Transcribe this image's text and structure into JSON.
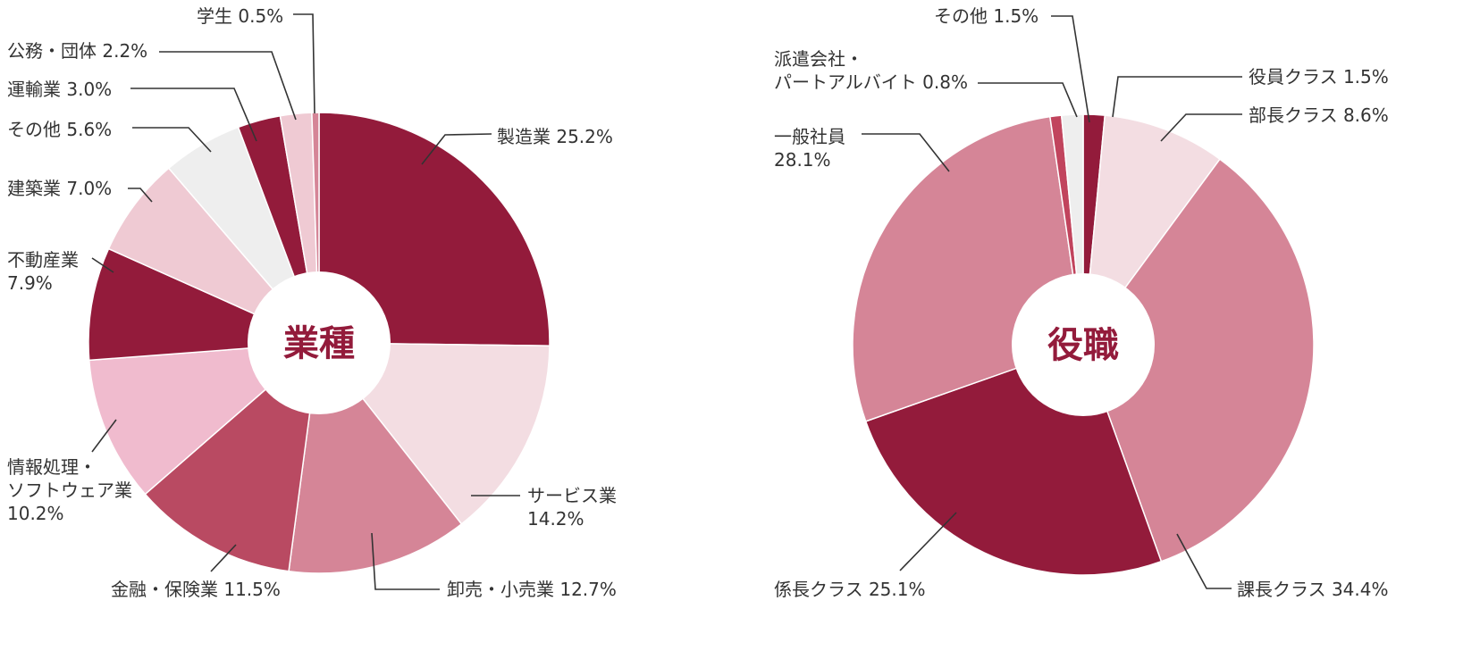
{
  "chart_data": [
    {
      "type": "pie",
      "title": "業種",
      "slices": [
        {
          "label": "製造業",
          "value": 25.2,
          "display": "25.2%",
          "color": "#931b3b"
        },
        {
          "label": "サービス業",
          "value": 14.2,
          "display": "14.2%",
          "color": "#f3dde2"
        },
        {
          "label": "卸売・小売業",
          "value": 12.7,
          "display": "12.7%",
          "color": "#d58597"
        },
        {
          "label": "金融・保険業",
          "value": 11.5,
          "display": "11.5%",
          "color": "#b94a62"
        },
        {
          "label": "情報処理・ソフトウェア業",
          "value": 10.2,
          "display": "10.2%",
          "color": "#f0bbce"
        },
        {
          "label": "不動産業",
          "value": 7.9,
          "display": "7.9%",
          "color": "#931b3b"
        },
        {
          "label": "建築業",
          "value": 7.0,
          "display": "7.0%",
          "color": "#efcad3"
        },
        {
          "label": "その他",
          "value": 5.6,
          "display": "5.6%",
          "color": "#eeeeee"
        },
        {
          "label": "運輸業",
          "value": 3.0,
          "display": "3.0%",
          "color": "#931b3b"
        },
        {
          "label": "公務・団体",
          "value": 2.2,
          "display": "2.2%",
          "color": "#efcad3"
        },
        {
          "label": "学生",
          "value": 0.5,
          "display": "0.5%",
          "color": "#d58597"
        }
      ]
    },
    {
      "type": "pie",
      "title": "役職",
      "slices": [
        {
          "label": "役員クラス",
          "value": 1.5,
          "display": "1.5%",
          "color": "#931b3b"
        },
        {
          "label": "部長クラス",
          "value": 8.6,
          "display": "8.6%",
          "color": "#f3dde2"
        },
        {
          "label": "課長クラス",
          "value": 34.4,
          "display": "34.4%",
          "color": "#d58597"
        },
        {
          "label": "係長クラス",
          "value": 25.1,
          "display": "25.1%",
          "color": "#931b3b"
        },
        {
          "label": "一般社員",
          "value": 28.1,
          "display": "28.1%",
          "color": "#d58597"
        },
        {
          "label": "派遣会社・パートアルバイト",
          "value": 0.8,
          "display": "0.8%",
          "color": "#c1445d"
        },
        {
          "label": "その他",
          "value": 1.5,
          "display": "1.5%",
          "color": "#eeeeee"
        }
      ]
    }
  ]
}
